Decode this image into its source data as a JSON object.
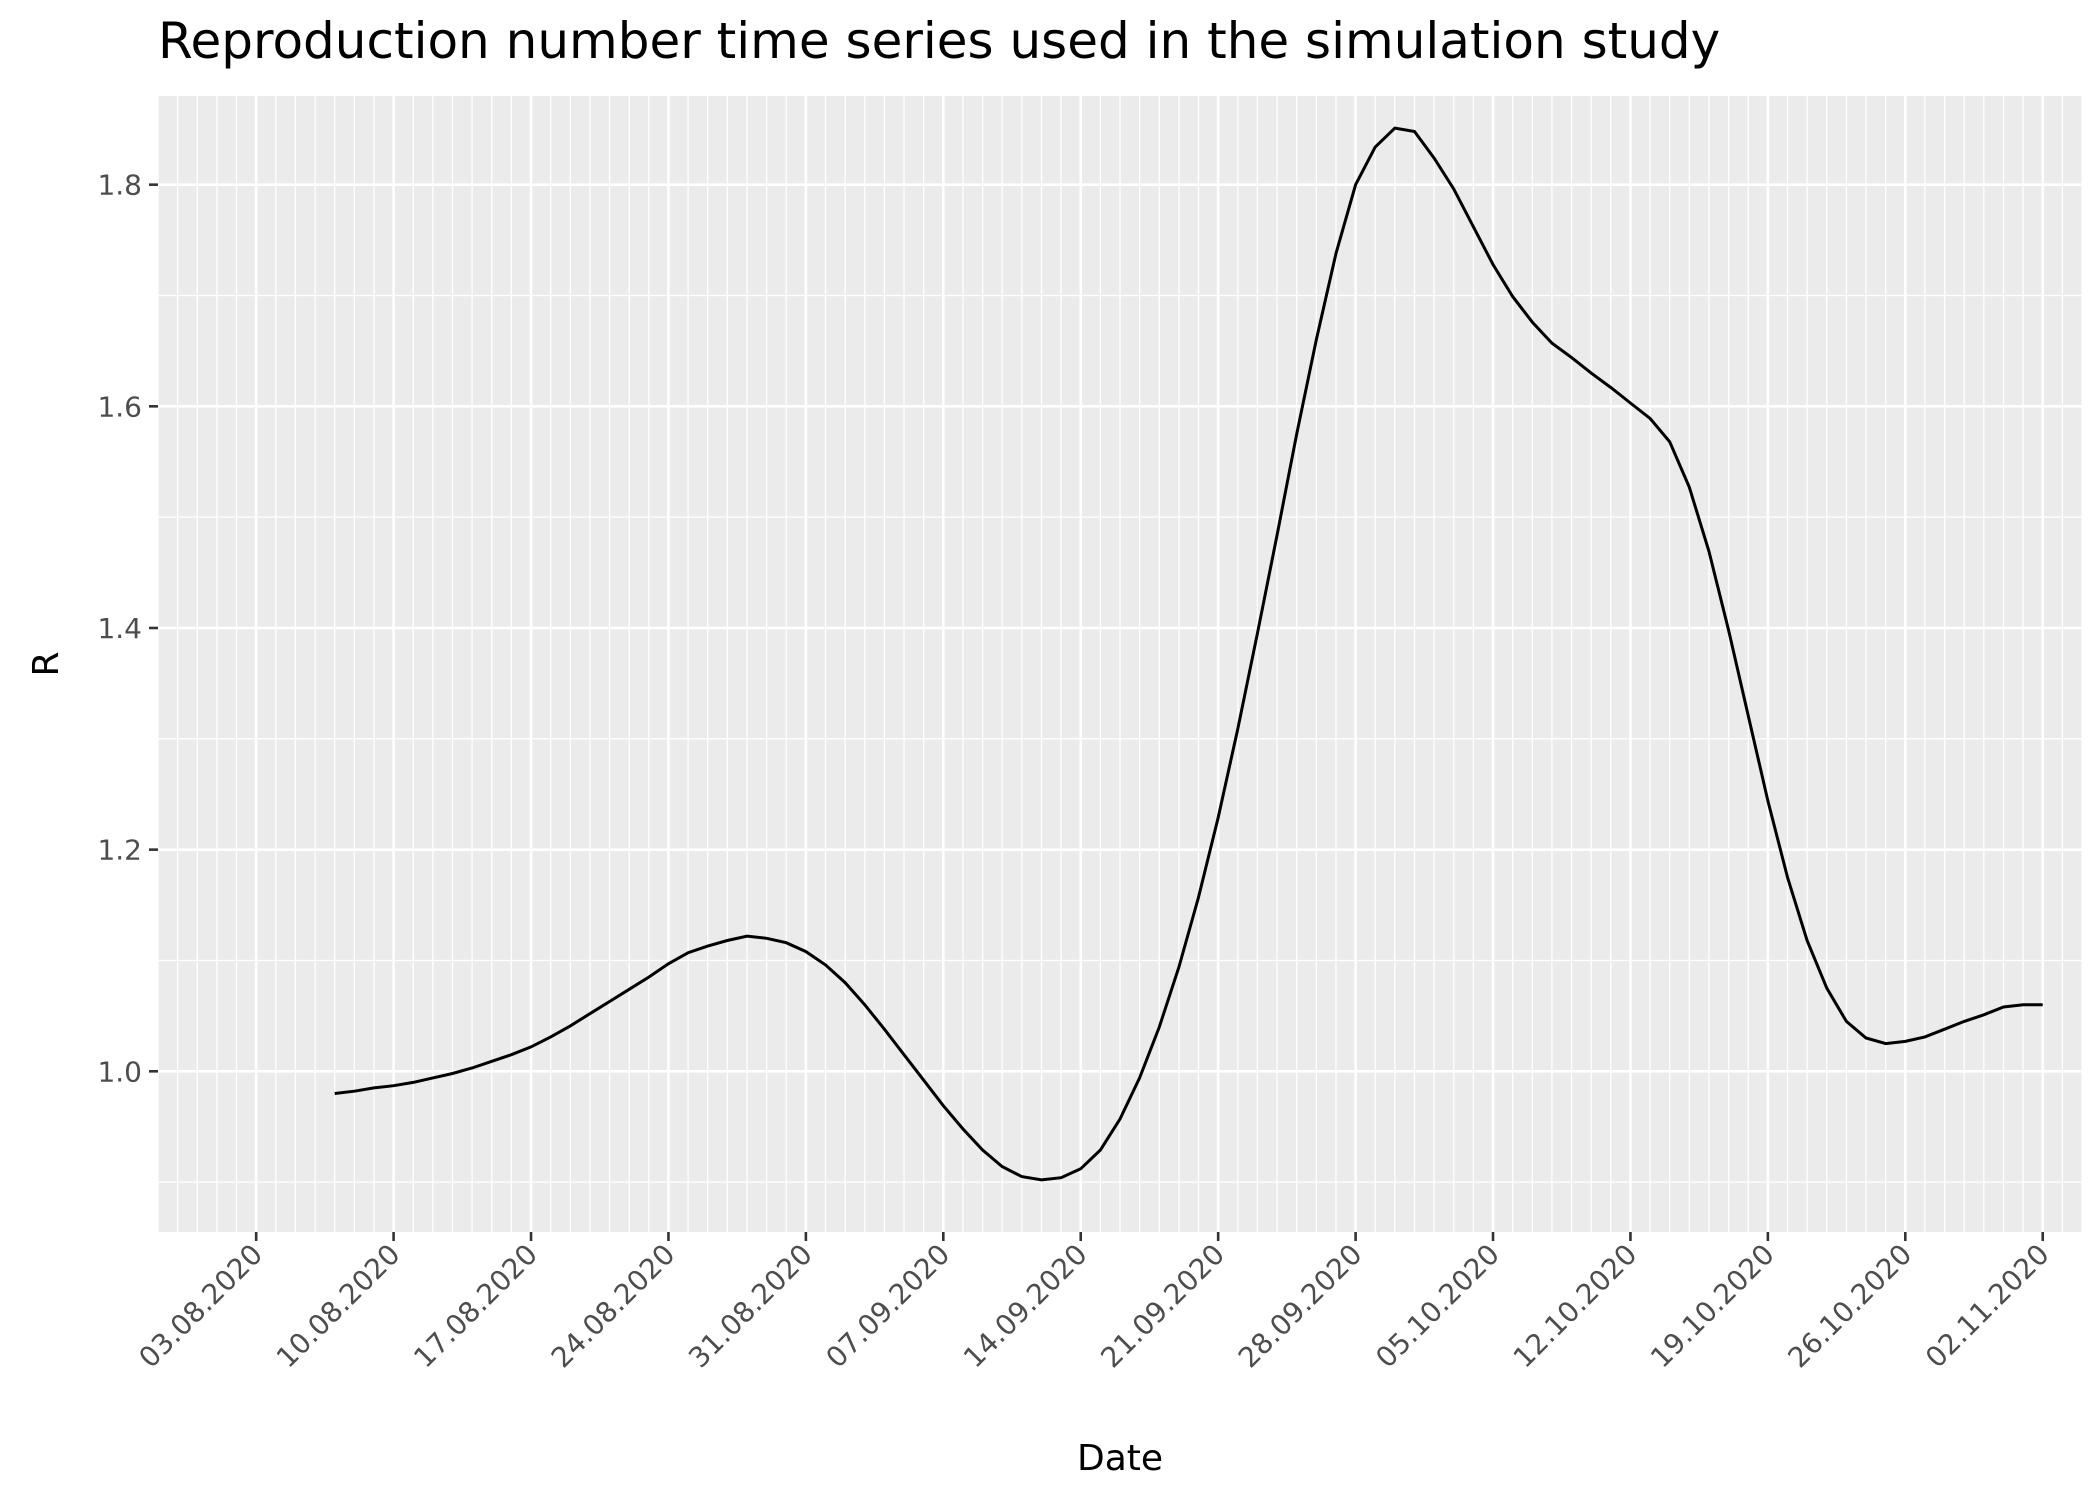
{
  "chart_data": {
    "type": "line",
    "title": "Reproduction number time series used in the simulation study",
    "xlabel": "Date",
    "ylabel": "R",
    "x_tick_labels": [
      "03.08.2020",
      "10.08.2020",
      "17.08.2020",
      "24.08.2020",
      "31.08.2020",
      "07.09.2020",
      "14.09.2020",
      "21.09.2020",
      "28.09.2020",
      "05.10.2020",
      "12.10.2020",
      "19.10.2020",
      "26.10.2020",
      "02.11.2020"
    ],
    "y_tick_labels": [
      "1.0",
      "1.2",
      "1.4",
      "1.6",
      "1.8"
    ],
    "y_ticks": [
      1.0,
      1.2,
      1.4,
      1.6,
      1.8
    ],
    "xlim": [
      "2020-07-29",
      "2020-11-04"
    ],
    "ylim": [
      0.855,
      1.88
    ],
    "panel_background": "#ebebeb",
    "gridline_color": "#ffffff",
    "line_color": "#000000",
    "grid": true,
    "legend": "none",
    "series": [
      {
        "x": [
          "2020-08-07",
          "2020-08-08",
          "2020-08-09",
          "2020-08-10",
          "2020-08-11",
          "2020-08-12",
          "2020-08-13",
          "2020-08-14",
          "2020-08-15",
          "2020-08-16",
          "2020-08-17",
          "2020-08-18",
          "2020-08-19",
          "2020-08-20",
          "2020-08-21",
          "2020-08-22",
          "2020-08-23",
          "2020-08-24",
          "2020-08-25",
          "2020-08-26",
          "2020-08-27",
          "2020-08-28",
          "2020-08-29",
          "2020-08-30",
          "2020-08-31",
          "2020-09-01",
          "2020-09-02",
          "2020-09-03",
          "2020-09-04",
          "2020-09-05",
          "2020-09-06",
          "2020-09-07",
          "2020-09-08",
          "2020-09-09",
          "2020-09-10",
          "2020-09-11",
          "2020-09-12",
          "2020-09-13",
          "2020-09-14",
          "2020-09-15",
          "2020-09-16",
          "2020-09-17",
          "2020-09-18",
          "2020-09-19",
          "2020-09-20",
          "2020-09-21",
          "2020-09-22",
          "2020-09-23",
          "2020-09-24",
          "2020-09-25",
          "2020-09-26",
          "2020-09-27",
          "2020-09-28",
          "2020-09-29",
          "2020-09-30",
          "2020-10-01",
          "2020-10-02",
          "2020-10-03",
          "2020-10-04",
          "2020-10-05",
          "2020-10-06",
          "2020-10-07",
          "2020-10-08",
          "2020-10-09",
          "2020-10-10",
          "2020-10-11",
          "2020-10-12",
          "2020-10-13",
          "2020-10-14",
          "2020-10-15",
          "2020-10-16",
          "2020-10-17",
          "2020-10-18",
          "2020-10-19",
          "2020-10-20",
          "2020-10-21",
          "2020-10-22",
          "2020-10-23",
          "2020-10-24",
          "2020-10-25",
          "2020-10-26",
          "2020-10-27",
          "2020-10-28",
          "2020-10-29",
          "2020-10-30",
          "2020-10-31",
          "2020-11-01",
          "2020-11-02"
        ],
        "values": [
          0.98,
          0.982,
          0.985,
          0.987,
          0.99,
          0.994,
          0.998,
          1.003,
          1.009,
          1.015,
          1.022,
          1.031,
          1.041,
          1.052,
          1.063,
          1.074,
          1.085,
          1.097,
          1.107,
          1.113,
          1.118,
          1.122,
          1.12,
          1.116,
          1.108,
          1.096,
          1.08,
          1.06,
          1.038,
          1.015,
          0.992,
          0.969,
          0.948,
          0.929,
          0.914,
          0.905,
          0.902,
          0.904,
          0.912,
          0.929,
          0.957,
          0.994,
          1.04,
          1.094,
          1.157,
          1.229,
          1.309,
          1.395,
          1.484,
          1.575,
          1.66,
          1.738,
          1.8,
          1.834,
          1.851,
          1.848,
          1.824,
          1.796,
          1.762,
          1.728,
          1.699,
          1.676,
          1.657,
          1.644,
          1.63,
          1.617,
          1.603,
          1.589,
          1.568,
          1.527,
          1.469,
          1.398,
          1.321,
          1.244,
          1.175,
          1.118,
          1.075,
          1.045,
          1.03,
          1.025,
          1.027,
          1.031,
          1.038,
          1.045,
          1.051,
          1.058,
          1.06,
          1.06
        ]
      }
    ]
  }
}
